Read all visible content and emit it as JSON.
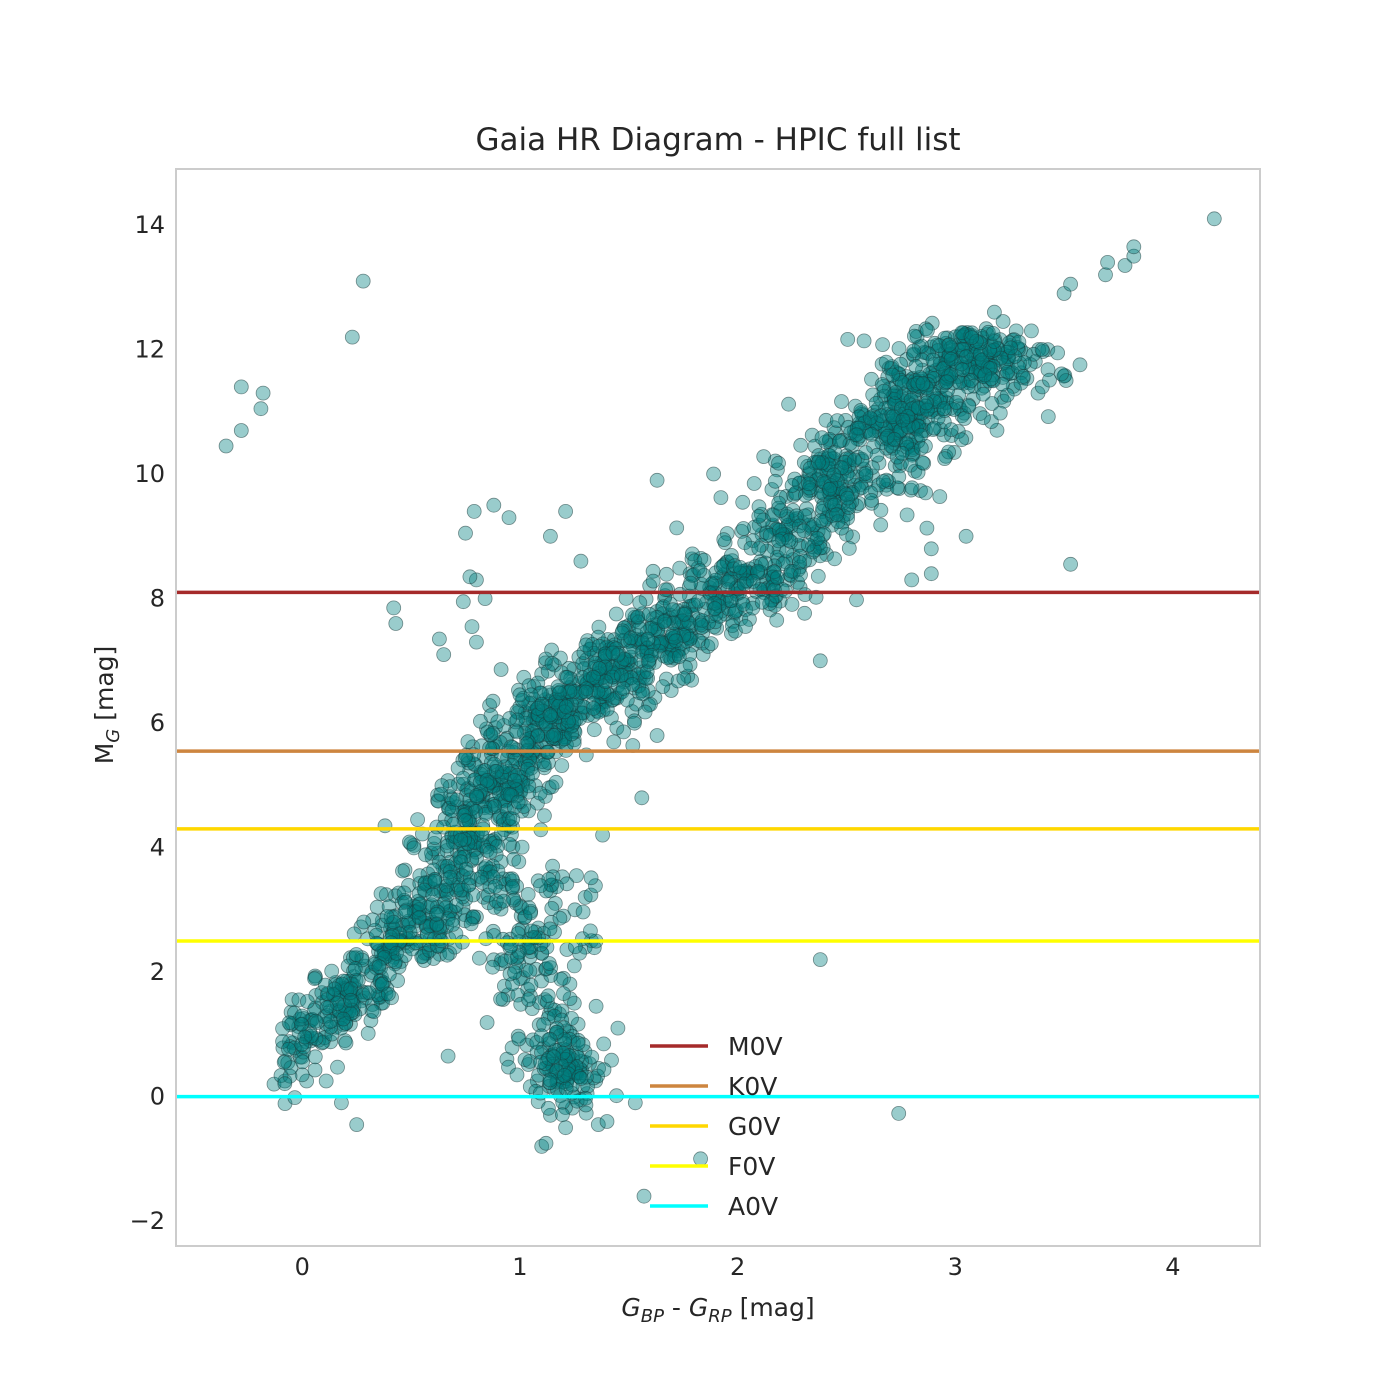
{
  "chart_data": {
    "type": "scatter",
    "title": "Gaia HR Diagram - HPIC full list",
    "xlabel": {
      "main1": "G",
      "sub1": "BP",
      "mid": " - ",
      "main2": "G",
      "sub2": "RP",
      "unit": " [mag]"
    },
    "ylabel": {
      "main": "M",
      "sub": "G",
      "unit": " [mag]"
    },
    "xlim": [
      -0.58,
      4.4
    ],
    "ylim": [
      14.9,
      -2.4
    ],
    "y_inverted": true,
    "grid": false,
    "xticks": [
      0,
      1,
      2,
      3,
      4
    ],
    "xtick_labels": [
      "0",
      "1",
      "2",
      "3",
      "4"
    ],
    "yticks": [
      -2,
      0,
      2,
      4,
      6,
      8,
      10,
      12,
      14
    ],
    "ytick_labels": [
      "−2",
      "0",
      "2",
      "4",
      "6",
      "8",
      "10",
      "12",
      "14"
    ],
    "point_color": "#008080",
    "point_edge_color": "#1a3a3a",
    "point_alpha": 0.4,
    "lines": [
      {
        "name": "M0V",
        "y": 8.1,
        "color": "#a52a2a"
      },
      {
        "name": "K0V",
        "y": 5.55,
        "color": "#cd853f"
      },
      {
        "name": "G0V",
        "y": 4.3,
        "color": "#ffd700"
      },
      {
        "name": "F0V",
        "y": 2.5,
        "color": "#ffff00"
      },
      {
        "name": "A0V",
        "y": 0.0,
        "color": "#00ffff"
      }
    ],
    "legend_placement": "lower-center",
    "main_sequence_ridge": [
      [
        0.45,
        2.2
      ],
      [
        0.6,
        3.0
      ],
      [
        0.75,
        4.1
      ],
      [
        0.9,
        5.0
      ],
      [
        1.05,
        5.8
      ],
      [
        1.25,
        6.4
      ],
      [
        1.5,
        7.0
      ],
      [
        1.8,
        7.7
      ],
      [
        2.1,
        8.5
      ],
      [
        2.4,
        9.6
      ],
      [
        2.6,
        10.4
      ],
      [
        2.8,
        11.0
      ],
      [
        3.0,
        11.7
      ],
      [
        3.2,
        12.2
      ]
    ],
    "points": [
      [
        1.57,
        -1.6
      ],
      [
        1.83,
        -1.0
      ],
      [
        2.74,
        -0.27
      ],
      [
        1.1,
        -0.8
      ],
      [
        1.12,
        -0.75
      ],
      [
        0.25,
        -0.45
      ],
      [
        0.18,
        -0.1
      ],
      [
        0.11,
        0.25
      ],
      [
        -0.13,
        0.2
      ],
      [
        -0.08,
        0.25
      ],
      [
        0.02,
        0.25
      ],
      [
        0.0,
        0.35
      ],
      [
        1.14,
        -0.3
      ],
      [
        1.21,
        -0.5
      ],
      [
        1.28,
        -0.05
      ],
      [
        1.36,
        -0.45
      ],
      [
        1.4,
        -0.4
      ],
      [
        1.53,
        -0.1
      ],
      [
        1.08,
        0.25
      ],
      [
        0.67,
        0.65
      ],
      [
        0.94,
        0.6
      ],
      [
        1.15,
        0.4
      ],
      [
        1.22,
        0.6
      ],
      [
        1.3,
        0.55
      ],
      [
        1.45,
        1.1
      ],
      [
        1.35,
        1.45
      ],
      [
        1.25,
        1.5
      ],
      [
        1.2,
        1.9
      ],
      [
        1.25,
        2.1
      ],
      [
        1.1,
        2.3
      ],
      [
        1.3,
        2.4
      ],
      [
        1.2,
        2.9
      ],
      [
        1.3,
        3.2
      ],
      [
        1.15,
        3.7
      ],
      [
        1.26,
        3.55
      ],
      [
        2.38,
        2.2
      ],
      [
        1.38,
        4.2
      ],
      [
        1.56,
        4.8
      ],
      [
        0.38,
        4.35
      ],
      [
        0.53,
        4.45
      ],
      [
        1.63,
        5.8
      ],
      [
        0.65,
        7.1
      ],
      [
        0.8,
        7.3
      ],
      [
        0.63,
        7.35
      ],
      [
        0.43,
        7.6
      ],
      [
        0.42,
        7.85
      ],
      [
        0.78,
        7.55
      ],
      [
        0.74,
        7.95
      ],
      [
        0.84,
        8.0
      ],
      [
        0.8,
        8.3
      ],
      [
        0.77,
        8.35
      ],
      [
        1.28,
        8.6
      ],
      [
        0.75,
        9.05
      ],
      [
        1.14,
        9.0
      ],
      [
        0.79,
        9.4
      ],
      [
        0.88,
        9.5
      ],
      [
        0.95,
        9.3
      ],
      [
        1.21,
        9.4
      ],
      [
        1.63,
        9.9
      ],
      [
        1.89,
        10.0
      ],
      [
        2.38,
        7.0
      ],
      [
        -0.35,
        10.45
      ],
      [
        -0.28,
        10.7
      ],
      [
        -0.19,
        11.05
      ],
      [
        -0.18,
        11.3
      ],
      [
        -0.28,
        11.4
      ],
      [
        0.23,
        12.2
      ],
      [
        0.28,
        13.1
      ],
      [
        2.8,
        8.3
      ],
      [
        2.89,
        8.4
      ],
      [
        2.89,
        8.8
      ],
      [
        3.05,
        9.0
      ],
      [
        3.53,
        8.55
      ],
      [
        3.38,
        11.3
      ],
      [
        3.4,
        11.4
      ],
      [
        3.5,
        12.9
      ],
      [
        3.53,
        13.05
      ],
      [
        3.69,
        13.2
      ],
      [
        3.7,
        13.4
      ],
      [
        3.78,
        13.35
      ],
      [
        3.82,
        13.5
      ],
      [
        3.82,
        13.65
      ],
      [
        4.19,
        14.1
      ],
      [
        3.35,
        12.3
      ],
      [
        3.22,
        12.45
      ],
      [
        3.18,
        12.6
      ],
      [
        3.3,
        12.0
      ],
      [
        3.28,
        12.3
      ],
      [
        3.05,
        12.25
      ],
      [
        2.97,
        12.0
      ]
    ],
    "seed": 7
  }
}
